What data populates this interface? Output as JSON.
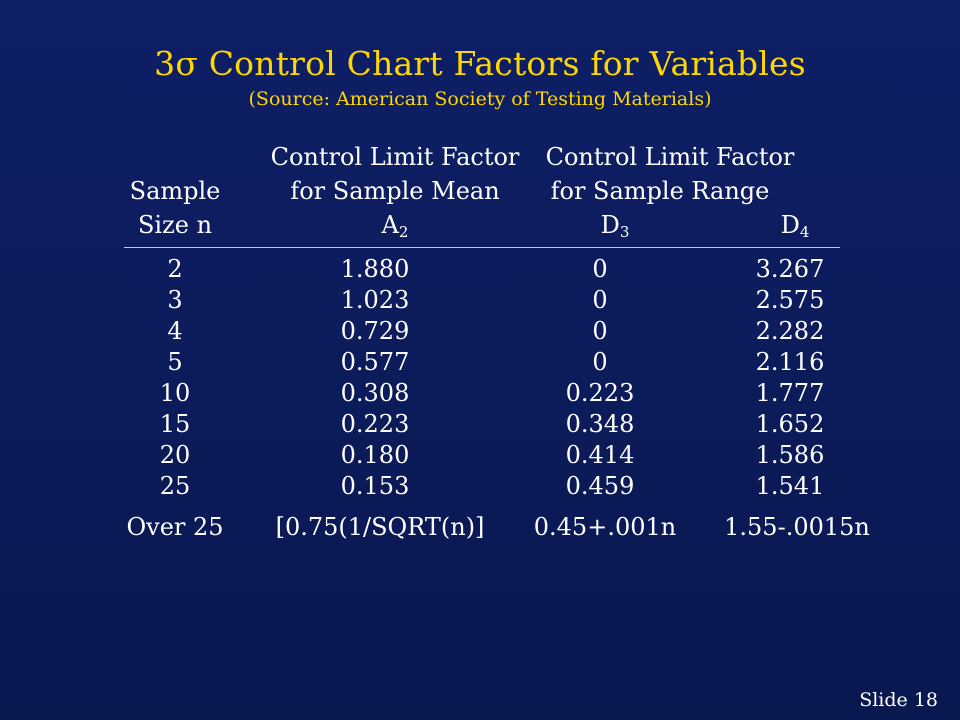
{
  "slide": {
    "title": "3σ Control Chart Factors for Variables",
    "subtitle": "(Source:  American Society of Testing Materials)",
    "slide_number": "Slide 18"
  },
  "table": {
    "header_line1_col1": "Control Limit Factor",
    "header_line1_col2": "Control Limit Factor",
    "header_line2_col0": "Sample",
    "header_line2_col1": "for Sample Mean",
    "header_line2_col2": "for Sample Range",
    "header_line3_col0": "Size n",
    "a2": {
      "base": "A",
      "sub": "2"
    },
    "d3": {
      "base": "D",
      "sub": "3"
    },
    "d4": {
      "base": "D",
      "sub": "4"
    },
    "rows": [
      {
        "n": "2",
        "a2": "1.880",
        "d3": "0",
        "d4": "3.267"
      },
      {
        "n": "3",
        "a2": "1.023",
        "d3": "0",
        "d4": "2.575"
      },
      {
        "n": "4",
        "a2": "0.729",
        "d3": "0",
        "d4": "2.282"
      },
      {
        "n": "5",
        "a2": "0.577",
        "d3": "0",
        "d4": "2.116"
      },
      {
        "n": "10",
        "a2": "0.308",
        "d3": "0.223",
        "d4": "1.777"
      },
      {
        "n": "15",
        "a2": "0.223",
        "d3": "0.348",
        "d4": "1.652"
      },
      {
        "n": "20",
        "a2": "0.180",
        "d3": "0.414",
        "d4": "1.586"
      },
      {
        "n": "25",
        "a2": "0.153",
        "d3": "0.459",
        "d4": "1.541"
      },
      {
        "n": "Over 25",
        "a2": "[0.75(1/SQRT(n)]",
        "d3": "0.45+.001n",
        "d4": "1.55-.0015n"
      }
    ]
  }
}
